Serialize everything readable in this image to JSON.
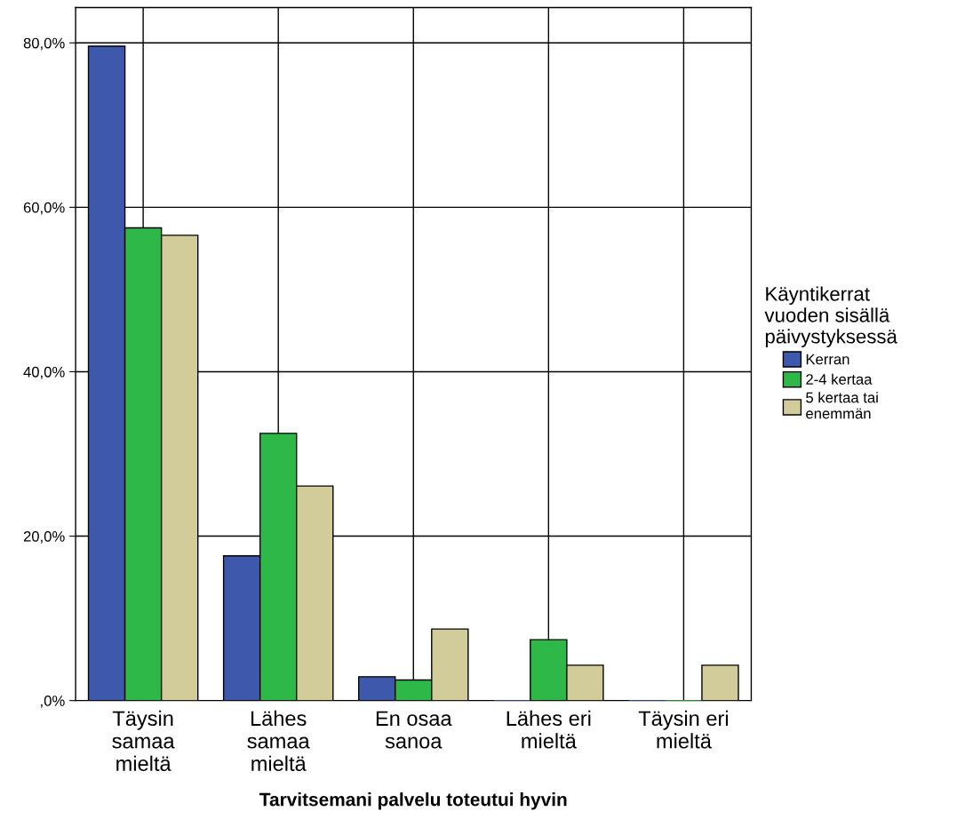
{
  "chart_data": {
    "type": "bar",
    "xlabel": "Tarvitsemani palvelu toteutui hyvin",
    "categories": [
      "Täysin\nsamaa\nmieltä",
      "Lähes\nsamaa\nmieltä",
      "En osaa\nsanoa",
      "Lähes eri\nmieltä",
      "Täysin eri\nmieltä"
    ],
    "series": [
      {
        "name": "Kerran",
        "color": "#3e58ac",
        "values": [
          79.6,
          17.6,
          2.9,
          0,
          0
        ]
      },
      {
        "name": "2-4 kertaa",
        "color": "#2eb848",
        "values": [
          57.5,
          32.5,
          2.5,
          7.4,
          0
        ]
      },
      {
        "name": "5 kertaa tai\nenemmän",
        "color": "#d2cc9a",
        "values": [
          56.6,
          26.1,
          8.7,
          4.3,
          4.3
        ]
      }
    ],
    "legend_title": "Käyntikerrat\nvuoden sisällä\npäivystyksessä",
    "ylim": [
      0,
      84.3
    ],
    "yticks": [
      {
        "value": 0,
        "label": ",0%"
      },
      {
        "value": 20,
        "label": "20,0%"
      },
      {
        "value": 40,
        "label": "40,0%"
      },
      {
        "value": 60,
        "label": "60,0%"
      },
      {
        "value": 80,
        "label": "80,0%"
      }
    ],
    "grid": true,
    "legend": "right"
  }
}
